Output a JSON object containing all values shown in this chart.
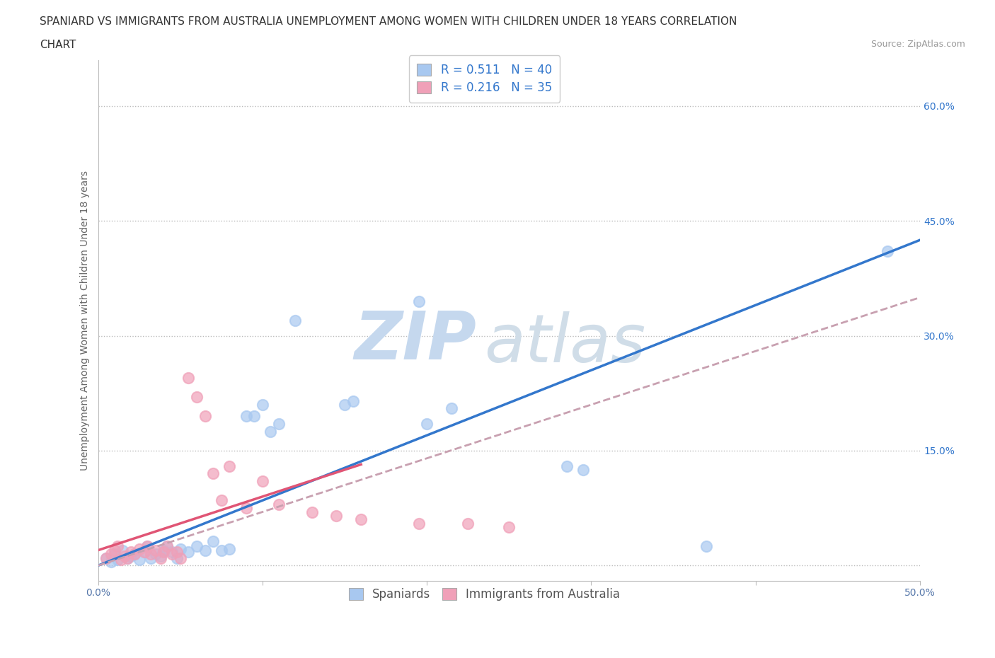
{
  "title_line1": "SPANIARD VS IMMIGRANTS FROM AUSTRALIA UNEMPLOYMENT AMONG WOMEN WITH CHILDREN UNDER 18 YEARS CORRELATION",
  "title_line2": "CHART",
  "source_text": "Source: ZipAtlas.com",
  "ylabel": "Unemployment Among Women with Children Under 18 years",
  "xmin": 0.0,
  "xmax": 0.5,
  "ymin": -0.02,
  "ymax": 0.66,
  "yticks": [
    0.0,
    0.15,
    0.3,
    0.45,
    0.6
  ],
  "ytick_labels": [
    "",
    "15.0%",
    "30.0%",
    "45.0%",
    "60.0%"
  ],
  "xticks": [
    0.0,
    0.1,
    0.2,
    0.3,
    0.4,
    0.5
  ],
  "xtick_labels": [
    "0.0%",
    "",
    "",
    "",
    "",
    "50.0%"
  ],
  "blue_color": "#a8c8f0",
  "pink_color": "#f0a0b8",
  "blue_line_color": "#3377cc",
  "pink_line_color": "#e05575",
  "dashed_line_color": "#c8a0b0",
  "spaniards_x": [
    0.005,
    0.008,
    0.01,
    0.012,
    0.015,
    0.018,
    0.02,
    0.022,
    0.025,
    0.028,
    0.03,
    0.032,
    0.035,
    0.038,
    0.04,
    0.042,
    0.045,
    0.048,
    0.05,
    0.055,
    0.06,
    0.065,
    0.07,
    0.075,
    0.08,
    0.09,
    0.095,
    0.1,
    0.105,
    0.11,
    0.12,
    0.15,
    0.155,
    0.195,
    0.2,
    0.215,
    0.285,
    0.295,
    0.37,
    0.48
  ],
  "spaniards_y": [
    0.01,
    0.005,
    0.015,
    0.008,
    0.02,
    0.01,
    0.012,
    0.015,
    0.008,
    0.018,
    0.025,
    0.01,
    0.015,
    0.012,
    0.02,
    0.025,
    0.018,
    0.01,
    0.022,
    0.018,
    0.025,
    0.02,
    0.032,
    0.02,
    0.022,
    0.195,
    0.195,
    0.21,
    0.175,
    0.185,
    0.32,
    0.21,
    0.215,
    0.345,
    0.185,
    0.205,
    0.13,
    0.125,
    0.025,
    0.41
  ],
  "immigrants_x": [
    0.005,
    0.008,
    0.01,
    0.012,
    0.014,
    0.016,
    0.018,
    0.02,
    0.022,
    0.025,
    0.028,
    0.03,
    0.032,
    0.035,
    0.038,
    0.04,
    0.042,
    0.045,
    0.048,
    0.05,
    0.055,
    0.06,
    0.065,
    0.07,
    0.075,
    0.08,
    0.09,
    0.1,
    0.11,
    0.13,
    0.145,
    0.16,
    0.195,
    0.225,
    0.25
  ],
  "immigrants_y": [
    0.01,
    0.015,
    0.02,
    0.025,
    0.008,
    0.012,
    0.01,
    0.018,
    0.015,
    0.022,
    0.018,
    0.025,
    0.015,
    0.02,
    0.01,
    0.018,
    0.025,
    0.015,
    0.018,
    0.01,
    0.245,
    0.22,
    0.195,
    0.12,
    0.085,
    0.13,
    0.075,
    0.11,
    0.08,
    0.07,
    0.065,
    0.06,
    0.055,
    0.055,
    0.05
  ],
  "watermark_zip": "ZIP",
  "watermark_atlas": "atlas",
  "watermark_color": "#c8ddf0",
  "background_color": "#ffffff",
  "title_fontsize": 11,
  "axis_label_fontsize": 10,
  "tick_fontsize": 10,
  "legend_fontsize": 12
}
